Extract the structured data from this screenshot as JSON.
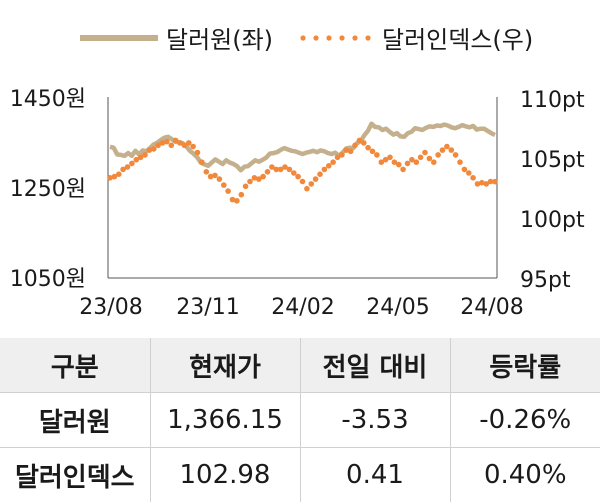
{
  "chart_data": {
    "type": "line",
    "x_ticks": [
      "23/08",
      "23/11",
      "24/02",
      "24/05",
      "24/08"
    ],
    "y_left_ticks": [
      "1450원",
      "1250원",
      "1050원"
    ],
    "y_left_range": [
      1050,
      1450
    ],
    "y_right_ticks": [
      "110pt",
      "105pt",
      "100pt",
      "95pt"
    ],
    "y_right_range": [
      95,
      110
    ],
    "legend_position": "top",
    "series": [
      {
        "name": "달러원(좌)",
        "axis": "left",
        "style": "solid",
        "color": "#c4b08c",
        "values": [
          1340,
          1338,
          1323,
          1322,
          1320,
          1326,
          1320,
          1331,
          1323,
          1332,
          1330,
          1337,
          1345,
          1349,
          1355,
          1360,
          1362,
          1357,
          1351,
          1350,
          1348,
          1341,
          1331,
          1325,
          1317,
          1305,
          1301,
          1298,
          1305,
          1312,
          1307,
          1302,
          1310,
          1305,
          1302,
          1297,
          1288,
          1296,
          1297,
          1304,
          1310,
          1307,
          1311,
          1316,
          1325,
          1326,
          1328,
          1333,
          1337,
          1334,
          1331,
          1330,
          1327,
          1324,
          1327,
          1329,
          1331,
          1328,
          1332,
          1330,
          1326,
          1324,
          1327,
          1320,
          1327,
          1336,
          1338,
          1337,
          1348,
          1352,
          1365,
          1375,
          1391,
          1384,
          1383,
          1377,
          1380,
          1373,
          1367,
          1370,
          1363,
          1362,
          1370,
          1373,
          1381,
          1379,
          1377,
          1382,
          1385,
          1384,
          1387,
          1386,
          1389,
          1387,
          1383,
          1381,
          1384,
          1388,
          1385,
          1383,
          1386,
          1378,
          1380,
          1380,
          1375,
          1370,
          1366
        ]
      },
      {
        "name": "달러인덱스(우)",
        "axis": "right",
        "style": "dotted",
        "color": "#f0893c",
        "values": [
          103.3,
          103.4,
          103.6,
          104.0,
          104.2,
          104.5,
          104.8,
          105.0,
          105.2,
          105.6,
          105.7,
          106.0,
          106.2,
          106.3,
          106.0,
          106.4,
          106.2,
          106.0,
          106.2,
          105.9,
          105.4,
          104.6,
          103.8,
          103.4,
          103.5,
          103.2,
          102.7,
          102.2,
          101.5,
          101.4,
          101.9,
          102.6,
          103.0,
          103.3,
          103.2,
          103.4,
          103.8,
          104.2,
          104.0,
          104.0,
          104.2,
          104.0,
          103.7,
          103.4,
          103.0,
          102.4,
          102.8,
          103.2,
          103.6,
          104.0,
          104.3,
          104.6,
          105.0,
          105.2,
          105.6,
          105.5,
          106.0,
          106.4,
          106.2,
          105.8,
          105.5,
          105.2,
          104.6,
          104.8,
          105.0,
          104.6,
          104.4,
          104.0,
          104.5,
          104.8,
          104.6,
          105.0,
          105.4,
          104.9,
          104.6,
          105.2,
          105.6,
          105.9,
          105.6,
          105.2,
          104.6,
          104.0,
          103.7,
          103.3,
          102.8,
          102.9,
          102.8,
          103.0,
          102.98
        ]
      }
    ]
  },
  "table": {
    "headers": [
      "구분",
      "현재가",
      "전일 대비",
      "등락률"
    ],
    "rows": [
      [
        "달러원",
        "1,366.15",
        "-3.53",
        "-0.26%"
      ],
      [
        "달러인덱스",
        "102.98",
        "0.41",
        "0.40%"
      ]
    ]
  }
}
